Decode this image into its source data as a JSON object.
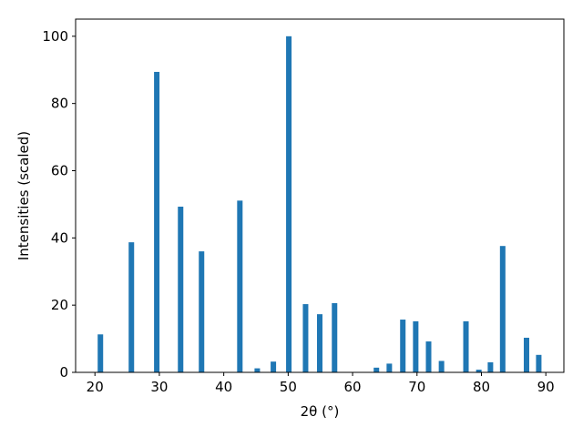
{
  "chart_data": {
    "type": "bar",
    "x_label": "2θ (°)",
    "y_label": "Intensities (scaled)",
    "x": [
      20.85,
      25.66,
      29.6,
      33.3,
      36.55,
      42.5,
      45.2,
      47.7,
      50.1,
      52.7,
      54.9,
      57.2,
      63.7,
      65.7,
      67.8,
      69.8,
      71.8,
      73.8,
      77.6,
      79.6,
      81.4,
      83.3,
      87.0,
      88.9
    ],
    "values": [
      11.3,
      38.7,
      89.4,
      49.3,
      36,
      51.1,
      1.2,
      3.2,
      100,
      20.3,
      17.3,
      20.6,
      1.4,
      2.6,
      15.7,
      15.2,
      9.2,
      3.4,
      15.2,
      0.8,
      3.0,
      37.6,
      10.3,
      5.2
    ],
    "color": "#1f77b4",
    "xlim": [
      17.0,
      92.8
    ],
    "xticks": [
      20,
      30,
      40,
      50,
      60,
      70,
      80,
      90
    ],
    "ylim": [
      0,
      105.1
    ],
    "yticks": [
      0,
      20,
      40,
      60,
      80,
      100
    ]
  }
}
